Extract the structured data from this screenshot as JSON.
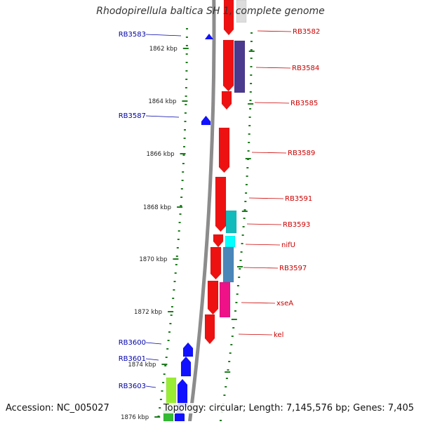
{
  "title": "Rhodopirellula baltica SH 1, complete genome",
  "accession": "Accession: NC_005027",
  "summary": "Topology: circular; Length: 7,145,576 bp; Genes: 7,405",
  "colors": {
    "backbone": "#8c8c8c",
    "tick": "#1e7d1e",
    "label_left": "#0000aa",
    "label_right": "#cc0000"
  },
  "scale_labels": [
    "1862 kbp",
    "1864 kbp",
    "1866 kbp",
    "1868 kbp",
    "1870 kbp",
    "1872 kbp",
    "1874 kbp",
    "1876 kbp"
  ],
  "left_genes": [
    "RB3583",
    "RB3587",
    "RB3600",
    "RB3601",
    "RB3603"
  ],
  "right_genes": [
    "RB3582",
    "RB3584",
    "RB3585",
    "RB3589",
    "RB3591",
    "RB3593",
    "nifU",
    "RB3597",
    "xseA",
    "kel"
  ]
}
